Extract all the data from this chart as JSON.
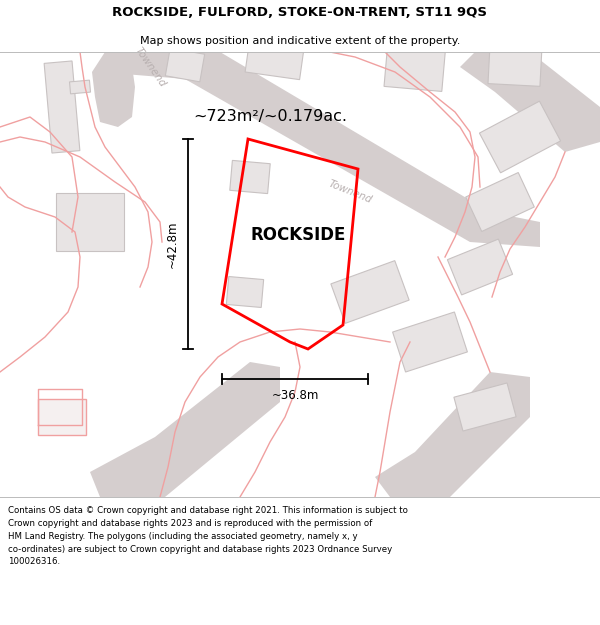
{
  "title": "ROCKSIDE, FULFORD, STOKE-ON-TRENT, ST11 9QS",
  "subtitle": "Map shows position and indicative extent of the property.",
  "area_label": "~723m²/~0.179ac.",
  "property_name": "ROCKSIDE",
  "dim_width": "~36.8m",
  "dim_height": "~42.8m",
  "road_label_1": "Townend",
  "road_label_2": "Townend",
  "footer_line1": "Contains OS data © Crown copyright and database right 2021. This information is subject to",
  "footer_line2": "Crown copyright and database rights 2023 and is reproduced with the permission of",
  "footer_line3": "HM Land Registry. The polygons (including the associated geometry, namely x, y",
  "footer_line4": "co-ordinates) are subject to Crown copyright and database rights 2023 Ordnance Survey",
  "footer_line5": "100026316.",
  "map_bg": "#f9f7f7",
  "road_color": "#d5cece",
  "building_fill": "#e8e4e4",
  "building_edge": "#c8c2c2",
  "red_line_color": "#ff0000",
  "pink_line_color": "#f0a0a0",
  "black_color": "#000000",
  "gray_road_text": "#b8b0b0",
  "white": "#ffffff"
}
